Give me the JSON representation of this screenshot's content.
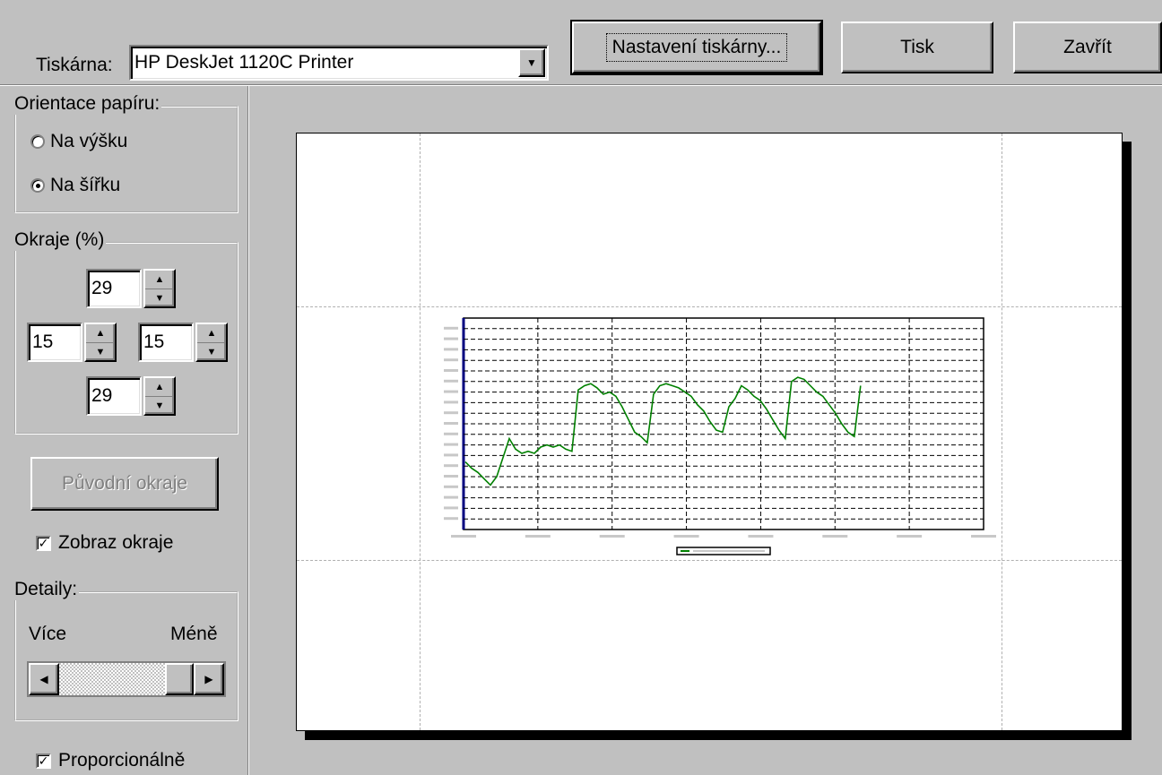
{
  "toolbar": {
    "printer_label": "Tiskárna:",
    "printer_value": "HP DeskJet 1120C Printer",
    "printer_setup_label": "Nastavení tiskárny...",
    "print_label": "Tisk",
    "close_label": "Zavřít"
  },
  "orientation": {
    "title": "Orientace papíru:",
    "portrait_label": "Na výšku",
    "landscape_label": "Na šířku",
    "selected": "landscape"
  },
  "margins": {
    "title": "Okraje (%)",
    "top": "29",
    "left": "15",
    "right": "15",
    "bottom": "29",
    "reset_label": "Původní okraje",
    "show_margins_label": "Zobraz okraje",
    "show_margins_checked": true
  },
  "details": {
    "title": "Detaily:",
    "more_label": "Více",
    "less_label": "Méně",
    "level": 1.0
  },
  "proportional": {
    "label": "Proporcionálně",
    "checked": true
  },
  "colors": {
    "series": "#008000",
    "grid": "#000000",
    "page": "#ffffff"
  },
  "chart_data": {
    "type": "line",
    "series": [
      {
        "values": [
          3.2,
          2.9,
          2.7,
          2.4,
          2.1,
          2.5,
          3.4,
          4.3,
          3.8,
          3.6,
          3.7,
          3.6,
          3.9,
          4.0,
          3.9,
          4.0,
          3.8,
          3.7,
          6.6,
          6.8,
          6.9,
          6.7,
          6.4,
          6.5,
          6.3,
          5.8,
          5.2,
          4.6,
          4.4,
          4.1,
          6.4,
          6.8,
          6.9,
          6.8,
          6.7,
          6.5,
          6.3,
          5.9,
          5.6,
          5.1,
          4.7,
          4.6,
          5.8,
          6.2,
          6.8,
          6.6,
          6.3,
          6.1,
          5.7,
          5.2,
          4.7,
          4.3,
          7.0,
          7.2,
          7.1,
          6.8,
          6.5,
          6.3,
          5.9,
          5.5,
          5.0,
          4.6,
          4.4,
          6.8
        ]
      }
    ],
    "ylim": [
      0,
      10
    ],
    "grid": true,
    "legend": "bottom-center"
  }
}
